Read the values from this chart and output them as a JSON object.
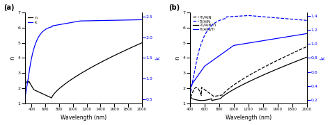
{
  "panel_a": {
    "label": "(a)",
    "wavelength_range": [
      300,
      2000
    ],
    "n_label": "n",
    "k_label": "k",
    "xlabel": "Wavelength (nm)",
    "left_ylabel": "n",
    "right_ylabel": "k",
    "left_ylim": [
      1,
      7
    ],
    "right_ylim": [
      0.4,
      2.6
    ],
    "left_yticks": [
      1,
      2,
      3,
      4,
      5,
      6,
      7
    ],
    "right_yticks": [
      0.5,
      1.0,
      1.5,
      2.0,
      2.5
    ],
    "xticks": [
      400,
      600,
      800,
      1000,
      1200,
      1400,
      1600,
      1800,
      2000
    ],
    "n_color": "black",
    "k_color": "blue"
  },
  "panel_b": {
    "label": "(b)",
    "wavelength_range": [
      400,
      2000
    ],
    "xlabel": "Wavelength (nm)",
    "left_ylabel": "n",
    "right_ylabel": "k",
    "left_ylim": [
      1,
      7
    ],
    "right_ylim": [
      0.15,
      1.45
    ],
    "left_yticks": [
      1,
      2,
      3,
      4,
      5,
      6,
      7
    ],
    "right_yticks": [
      0.2,
      0.4,
      0.6,
      0.8,
      1.0,
      1.2,
      1.4
    ],
    "xticks": [
      400,
      600,
      800,
      1000,
      1200,
      1400,
      1600,
      1800,
      2000
    ]
  },
  "background_color": "#ffffff",
  "axes_color": "#ffffff"
}
